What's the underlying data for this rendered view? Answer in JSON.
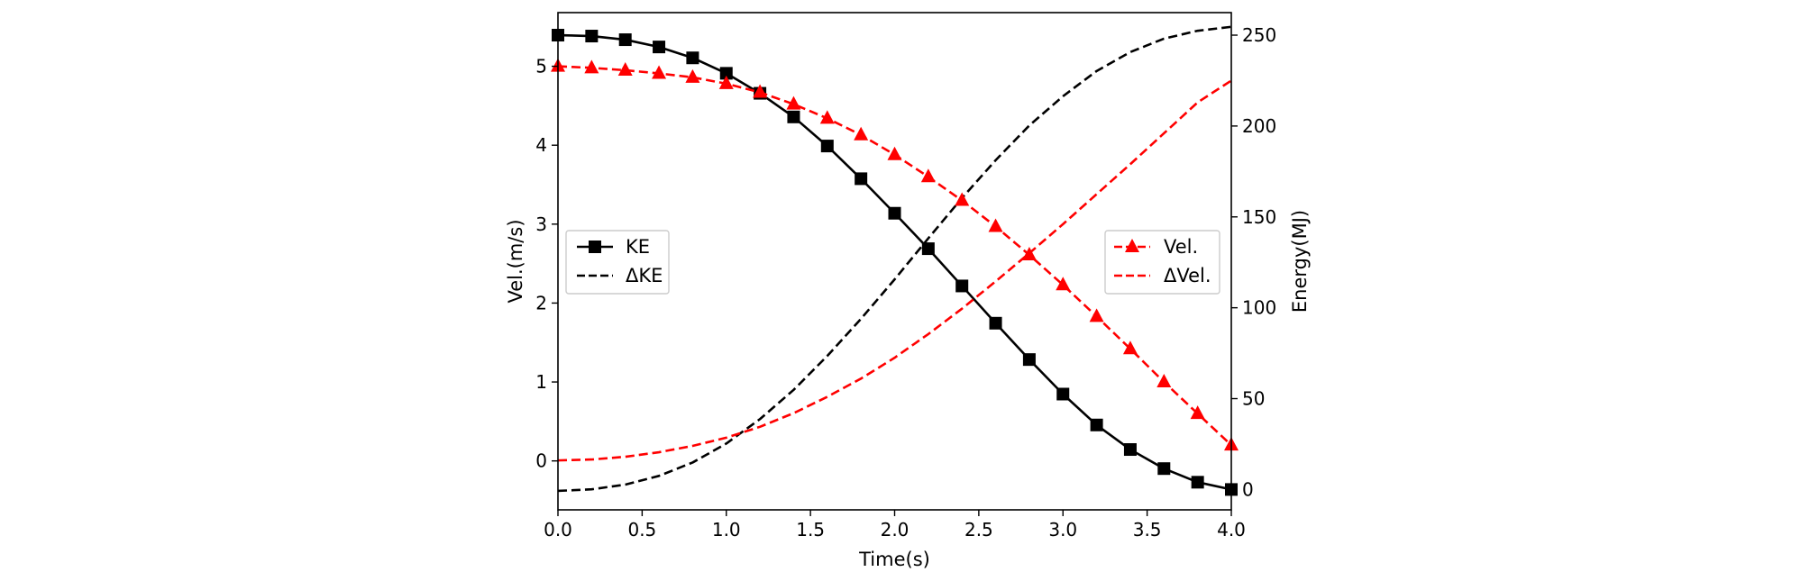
{
  "chart_data": {
    "type": "line",
    "xlabel": "Time(s)",
    "ylabel_left": "Vel.(m/s)",
    "ylabel_right": "Energy(MJ)",
    "xlim": [
      0,
      4
    ],
    "ylim_left": [
      -0.62,
      5.68
    ],
    "ylim_right": [
      -11.2,
      262.4
    ],
    "x_ticks": [
      0.0,
      0.5,
      1.0,
      1.5,
      2.0,
      2.5,
      3.0,
      3.5,
      4.0
    ],
    "x_tick_labels": [
      "0.0",
      "0.5",
      "1.0",
      "1.5",
      "2.0",
      "2.5",
      "3.0",
      "3.5",
      "4.0"
    ],
    "y_left_ticks": [
      0,
      1,
      2,
      3,
      4,
      5
    ],
    "y_left_tick_labels": [
      "0",
      "1",
      "2",
      "3",
      "4",
      "5"
    ],
    "y_right_ticks": [
      0,
      50,
      100,
      150,
      200,
      250
    ],
    "y_right_tick_labels": [
      "0",
      "50",
      "100",
      "150",
      "200",
      "250"
    ],
    "grid": false,
    "legends": [
      {
        "placement": "center-left",
        "entries": [
          "KE",
          "ΔKE"
        ]
      },
      {
        "placement": "center-right",
        "entries": [
          "Vel.",
          "ΔVel."
        ]
      }
    ],
    "series": [
      {
        "name": "KE",
        "axis": "right",
        "color": "#000000",
        "linestyle": "solid",
        "marker": "square",
        "x": [
          0.0,
          0.2,
          0.4,
          0.6,
          0.8,
          1.0,
          1.2,
          1.4,
          1.6,
          1.8,
          2.0,
          2.2,
          2.4,
          2.6,
          2.8,
          3.0,
          3.2,
          3.4,
          3.6,
          3.8,
          4.0
        ],
        "values": [
          250,
          249.5,
          247.5,
          243.5,
          237.5,
          229,
          218,
          205,
          189,
          171,
          152,
          132.5,
          112,
          91.5,
          71.5,
          52.5,
          35.5,
          22,
          11.5,
          4,
          0
        ]
      },
      {
        "name": "ΔKE",
        "axis": "left",
        "color": "#000000",
        "linestyle": "dashed",
        "marker": "none",
        "x": [
          0.0,
          0.2,
          0.4,
          0.6,
          0.8,
          1.0,
          1.2,
          1.4,
          1.6,
          1.8,
          2.0,
          2.2,
          2.4,
          2.6,
          2.8,
          3.0,
          3.2,
          3.4,
          3.6,
          3.8,
          4.0
        ],
        "values": [
          -0.38,
          -0.36,
          -0.3,
          -0.19,
          -0.02,
          0.22,
          0.53,
          0.9,
          1.33,
          1.8,
          2.3,
          2.82,
          3.33,
          3.81,
          4.25,
          4.62,
          4.94,
          5.18,
          5.35,
          5.45,
          5.5
        ]
      },
      {
        "name": "Vel.",
        "axis": "left",
        "color": "#ff0000",
        "linestyle": "dashed",
        "marker": "triangle",
        "x": [
          0.0,
          0.2,
          0.4,
          0.6,
          0.8,
          1.0,
          1.2,
          1.4,
          1.6,
          1.8,
          2.0,
          2.2,
          2.4,
          2.6,
          2.8,
          3.0,
          3.2,
          3.4,
          3.6,
          3.8,
          4.0
        ],
        "values": [
          5.0,
          4.98,
          4.95,
          4.91,
          4.86,
          4.78,
          4.67,
          4.52,
          4.34,
          4.13,
          3.88,
          3.6,
          3.3,
          2.97,
          2.61,
          2.23,
          1.83,
          1.42,
          1.0,
          0.6,
          0.2
        ]
      },
      {
        "name": "ΔVel.",
        "axis": "right",
        "color": "#ff0000",
        "linestyle": "dashed",
        "marker": "none",
        "x": [
          0.0,
          0.2,
          0.4,
          0.6,
          0.8,
          1.0,
          1.2,
          1.4,
          1.6,
          1.8,
          2.0,
          2.2,
          2.4,
          2.6,
          2.8,
          3.0,
          3.2,
          3.4,
          3.6,
          3.8,
          4.0
        ],
        "values": [
          16,
          16.5,
          18,
          20.5,
          24,
          28.5,
          34.5,
          42,
          51,
          61,
          72.5,
          85.5,
          99.5,
          114.5,
          130,
          146,
          162.5,
          179,
          196,
          213,
          225
        ]
      }
    ]
  }
}
